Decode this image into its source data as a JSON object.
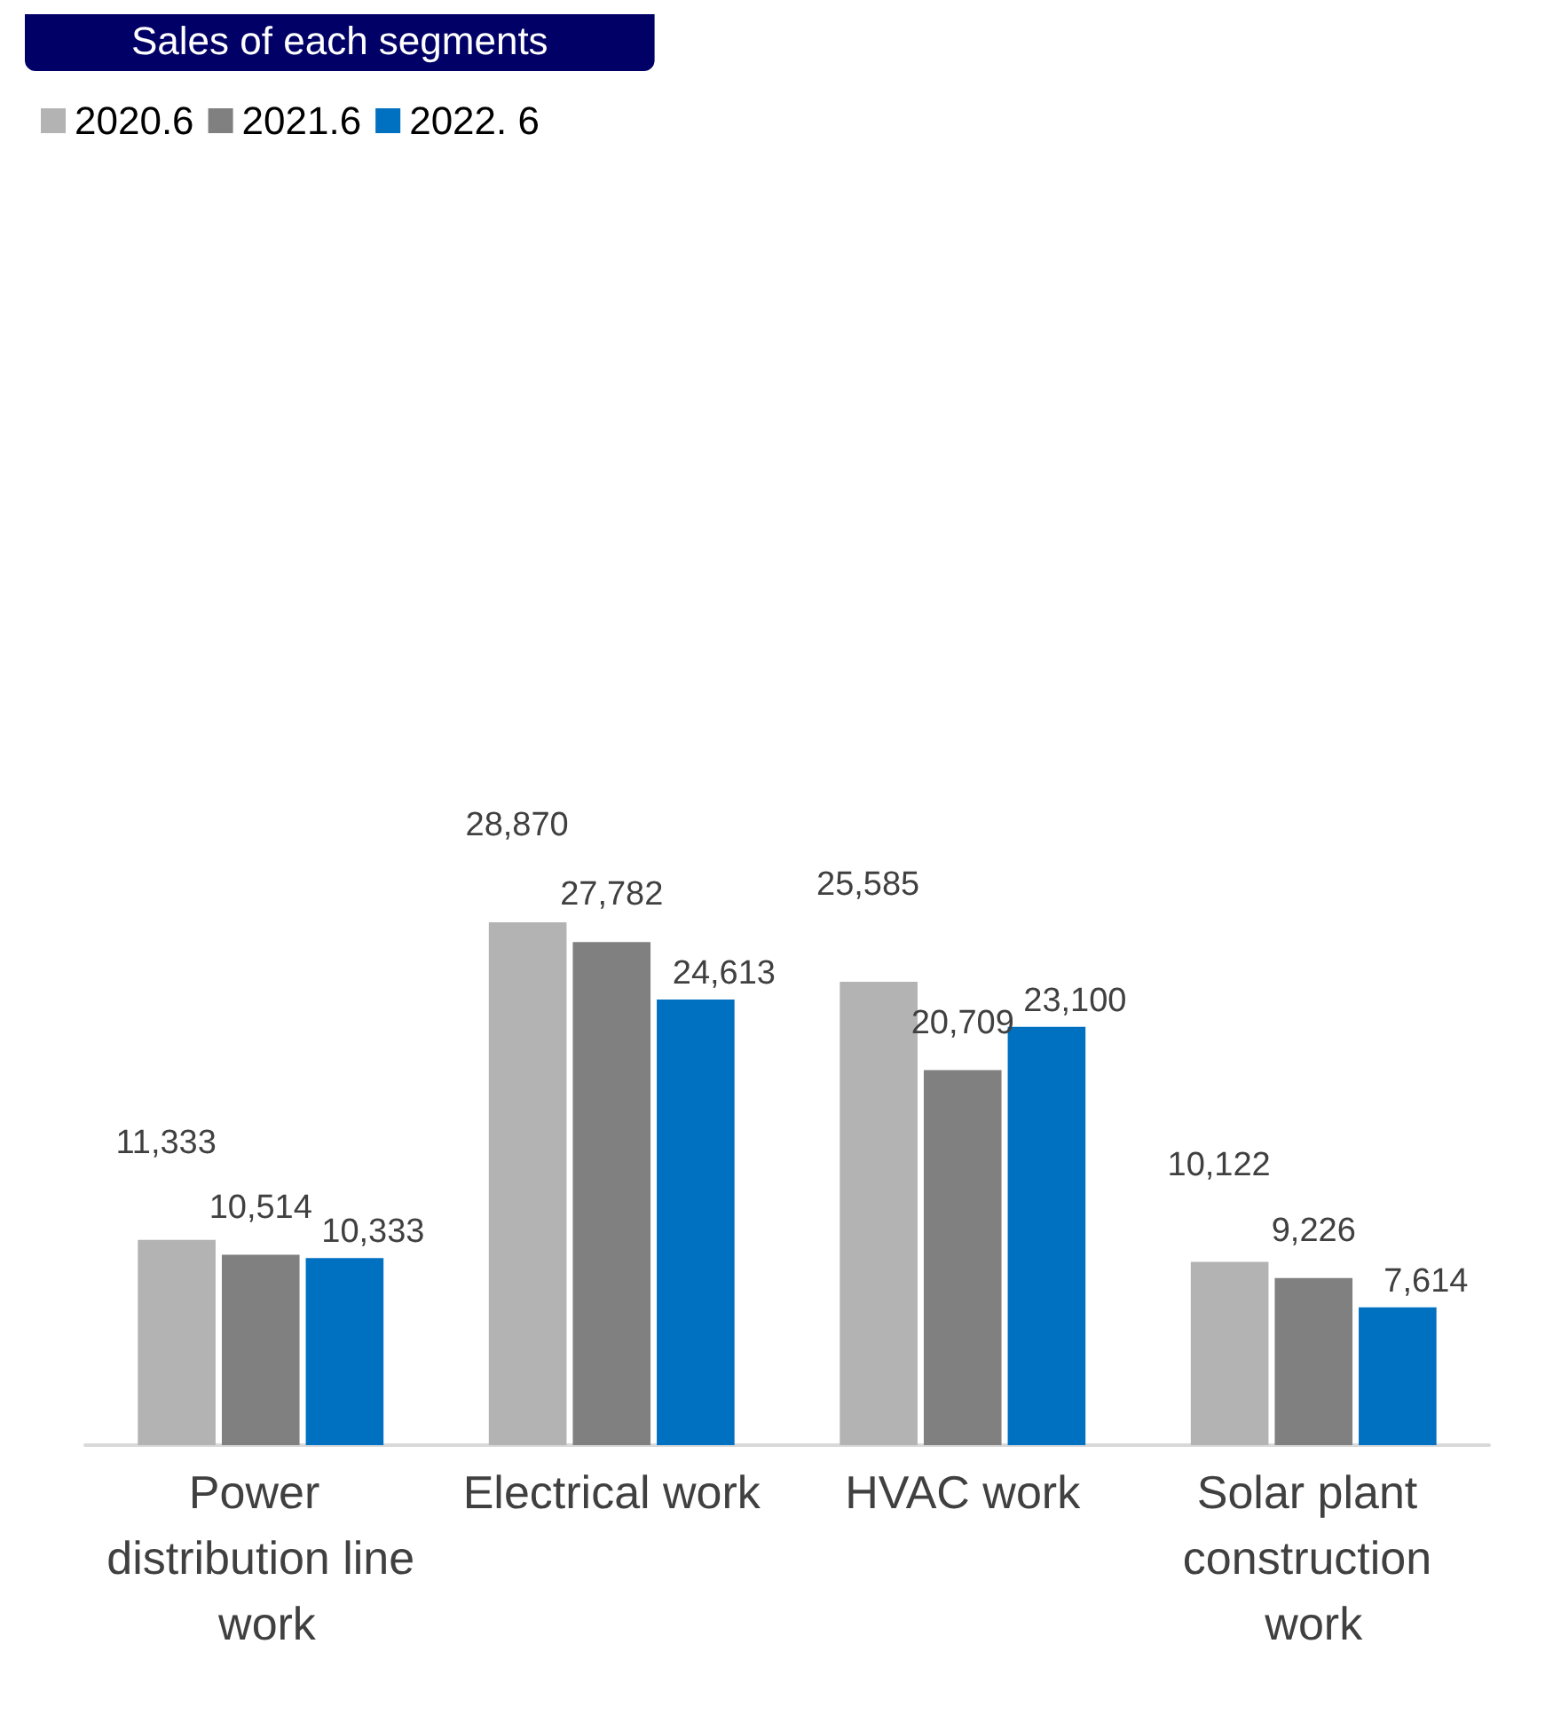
{
  "chart_data": {
    "type": "bar",
    "title": "Sales of each segments",
    "categories": [
      "Power distribution line work",
      "Electrical work",
      "HVAC work",
      "Solar plant construction work"
    ],
    "series": [
      {
        "name": "2020.6",
        "color": "#b3b3b3",
        "values": [
          11333,
          28870,
          25585,
          10122
        ],
        "value_labels": [
          "11,333",
          "28,870",
          "25,585",
          "10,122"
        ]
      },
      {
        "name": "2021.6",
        "color": "#808080",
        "values": [
          10514,
          27782,
          20709,
          9226
        ],
        "value_labels": [
          "10,514",
          "27,782",
          "20,709",
          "9,226"
        ]
      },
      {
        "name": "2022. 6",
        "color": "#0070c0",
        "values": [
          10333,
          24613,
          23100,
          7614
        ],
        "value_labels": [
          "10,333",
          "24,613",
          "23,100",
          "7,614"
        ]
      }
    ],
    "legend": "top left"
  }
}
